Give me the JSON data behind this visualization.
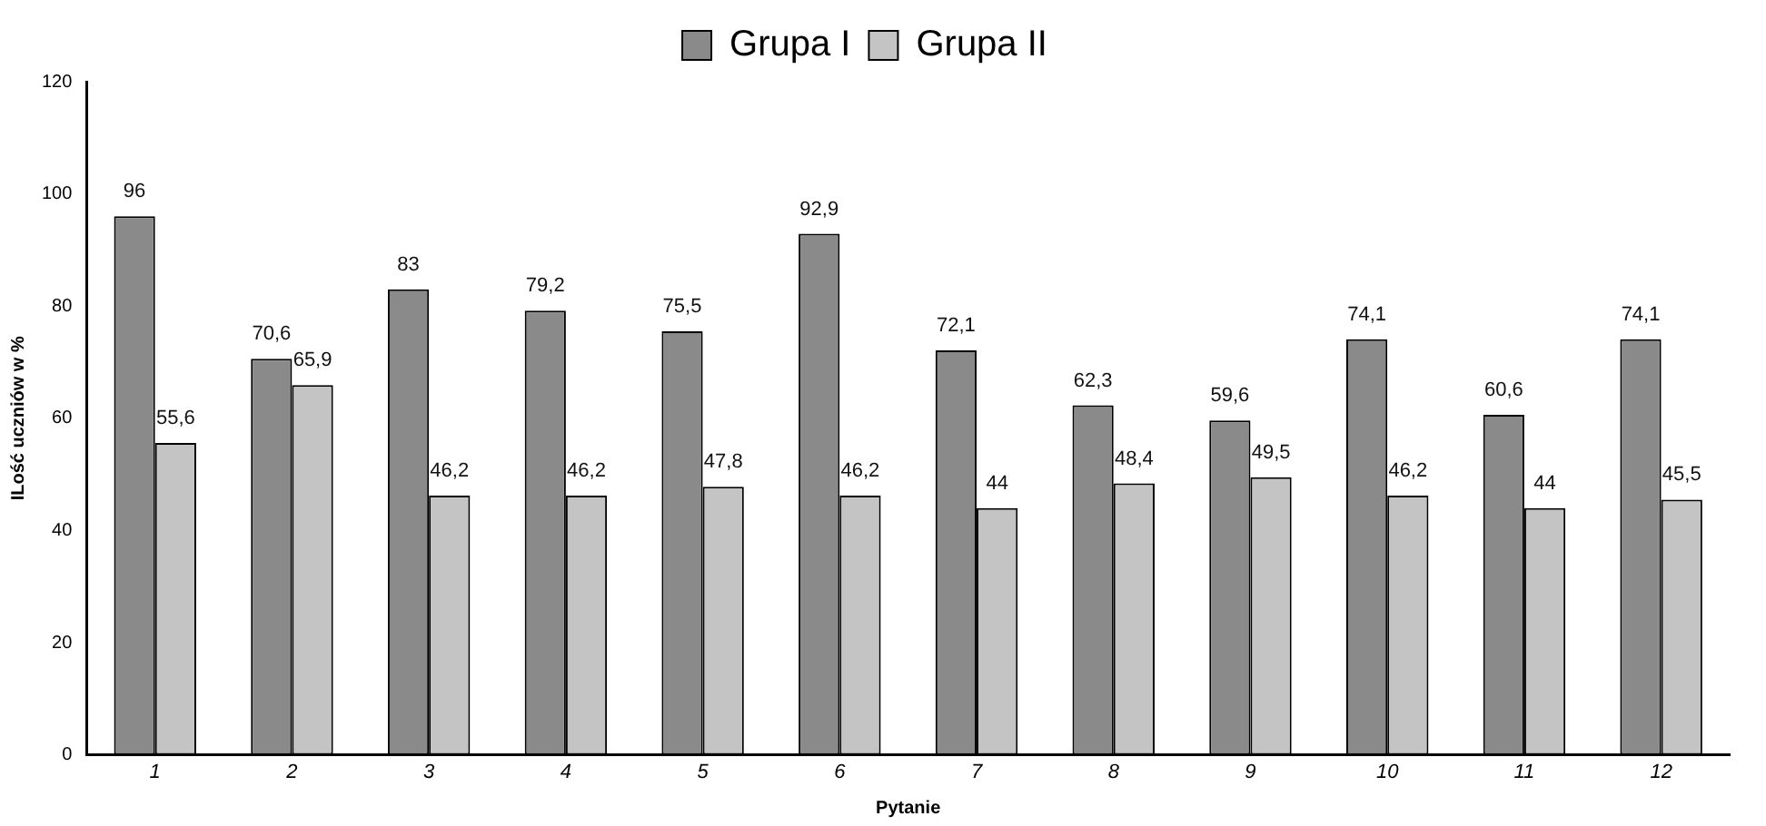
{
  "chart_data": {
    "type": "bar",
    "xlabel": "Pytanie",
    "ylabel": "ILość uczniów w %",
    "categories": [
      "1",
      "2",
      "3",
      "4",
      "5",
      "6",
      "7",
      "8",
      "9",
      "10",
      "11",
      "12"
    ],
    "series": [
      {
        "name": "Grupa I",
        "color": "#8a8a8a",
        "values": [
          96,
          70.6,
          83,
          79.2,
          75.5,
          92.9,
          72.1,
          62.3,
          59.6,
          74.1,
          60.6,
          74.1
        ],
        "value_labels": [
          "96",
          "70,6",
          "83",
          "79,2",
          "75,5",
          "92,9",
          "72,1",
          "62,3",
          "59,6",
          "74,1",
          "60,6",
          "74,1"
        ]
      },
      {
        "name": "Grupa II",
        "color": "#c4c4c4",
        "values": [
          55.6,
          65.9,
          46.2,
          46.2,
          47.8,
          46.2,
          44,
          48.4,
          49.5,
          46.2,
          44,
          45.5
        ],
        "value_labels": [
          "55,6",
          "65,9",
          "46,2",
          "46,2",
          "47,8",
          "46,2",
          "44",
          "48,4",
          "49,5",
          "46,2",
          "44",
          "45,5"
        ]
      }
    ],
    "ylim": [
      0,
      120
    ],
    "yticks": [
      0,
      20,
      40,
      60,
      80,
      100,
      120
    ],
    "grid": false,
    "legend": "top"
  }
}
